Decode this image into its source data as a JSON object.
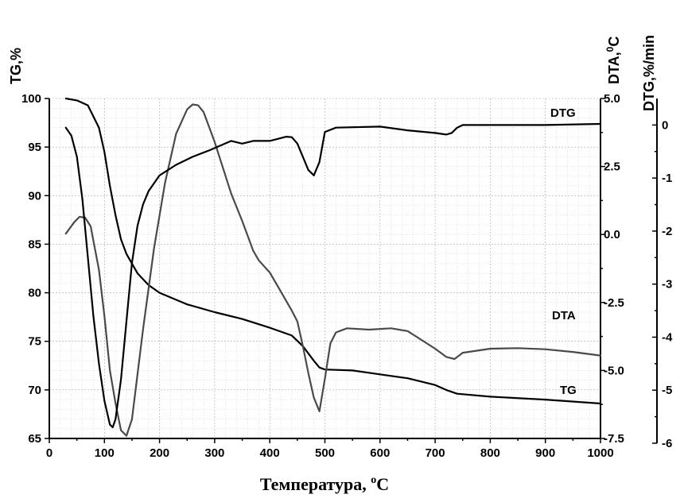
{
  "chart_data": {
    "type": "line",
    "xlabel": "Температура, ",
    "xlabel_sup": "o",
    "xlabel_unit": "C",
    "xlim": [
      0,
      1000
    ],
    "x_ticks": [
      "0",
      "100",
      "200",
      "300",
      "400",
      "500",
      "600",
      "700",
      "800",
      "900",
      "1000"
    ],
    "grid": true,
    "axes": {
      "tg": {
        "title": "TG,%",
        "lim": [
          65,
          100
        ],
        "ticks": [
          "65",
          "70",
          "75",
          "80",
          "85",
          "90",
          "95",
          "100"
        ]
      },
      "dta": {
        "title_main": "DTA,",
        "title_sup": "0",
        "title_unit": "C",
        "lim": [
          -7.5,
          5.0
        ],
        "ticks": [
          "-7.5",
          "-5.0",
          "-2.5",
          "0.0",
          "2.5",
          "5.0"
        ]
      },
      "dtg": {
        "title": "DTG,%/min",
        "lim": [
          -6,
          0.5
        ],
        "ticks": [
          "-6",
          "-5",
          "-4",
          "-3",
          "-2",
          "-1",
          "0"
        ]
      }
    },
    "series": [
      {
        "name": "TG",
        "axis": "tg",
        "color": "#000000",
        "x": [
          30,
          50,
          70,
          90,
          100,
          110,
          120,
          130,
          140,
          160,
          180,
          200,
          250,
          300,
          350,
          400,
          420,
          440,
          460,
          480,
          490,
          500,
          550,
          600,
          650,
          700,
          720,
          740,
          800,
          900,
          1000
        ],
        "y": [
          100,
          99.8,
          99.3,
          97,
          94.5,
          91,
          88,
          85.5,
          84,
          82,
          80.8,
          80,
          78.8,
          78,
          77.3,
          76.4,
          76,
          75.6,
          74.5,
          73,
          72.3,
          72.1,
          72,
          71.6,
          71.2,
          70.5,
          70,
          69.6,
          69.3,
          69,
          68.6
        ]
      },
      {
        "name": "DTA",
        "axis": "dta",
        "color": "#4a4a4a",
        "x": [
          30,
          45,
          55,
          65,
          75,
          90,
          100,
          110,
          120,
          130,
          140,
          150,
          170,
          190,
          210,
          230,
          250,
          260,
          270,
          280,
          300,
          330,
          350,
          370,
          380,
          400,
          420,
          440,
          450,
          460,
          470,
          480,
          490,
          500,
          510,
          520,
          540,
          580,
          620,
          650,
          700,
          720,
          735,
          750,
          800,
          850,
          900,
          950,
          1000
        ],
        "y": [
          0.03,
          0.45,
          0.65,
          0.62,
          0.3,
          -1.3,
          -3,
          -5,
          -6.2,
          -7.2,
          -7.4,
          -6.8,
          -3.5,
          -0.5,
          1.9,
          3.7,
          4.6,
          4.78,
          4.75,
          4.5,
          3.4,
          1.5,
          0.5,
          -0.6,
          -0.95,
          -1.4,
          -2.1,
          -2.8,
          -3.2,
          -4.1,
          -5.1,
          -6,
          -6.5,
          -5.3,
          -4,
          -3.6,
          -3.45,
          -3.5,
          -3.45,
          -3.55,
          -4.2,
          -4.5,
          -4.58,
          -4.35,
          -4.2,
          -4.18,
          -4.22,
          -4.32,
          -4.45
        ]
      },
      {
        "name": "DTG",
        "axis": "dtg",
        "color": "#000000",
        "x": [
          30,
          40,
          50,
          60,
          70,
          80,
          90,
          100,
          110,
          115,
          120,
          130,
          140,
          150,
          160,
          170,
          180,
          200,
          230,
          260,
          290,
          330,
          350,
          370,
          400,
          430,
          440,
          450,
          460,
          470,
          480,
          490,
          500,
          520,
          600,
          650,
          700,
          720,
          730,
          740,
          750,
          800,
          900,
          1000
        ],
        "y": [
          -0.05,
          -0.2,
          -0.6,
          -1.4,
          -2.5,
          -3.6,
          -4.5,
          -5.2,
          -5.65,
          -5.7,
          -5.55,
          -4.8,
          -3.7,
          -2.6,
          -1.9,
          -1.5,
          -1.25,
          -0.95,
          -0.75,
          -0.6,
          -0.48,
          -0.3,
          -0.35,
          -0.3,
          -0.3,
          -0.22,
          -0.23,
          -0.35,
          -0.6,
          -0.85,
          -0.95,
          -0.7,
          -0.13,
          -0.05,
          -0.03,
          -0.1,
          -0.15,
          -0.18,
          -0.15,
          -0.05,
          0.0,
          0.0,
          0.0,
          0.02
        ]
      }
    ]
  }
}
